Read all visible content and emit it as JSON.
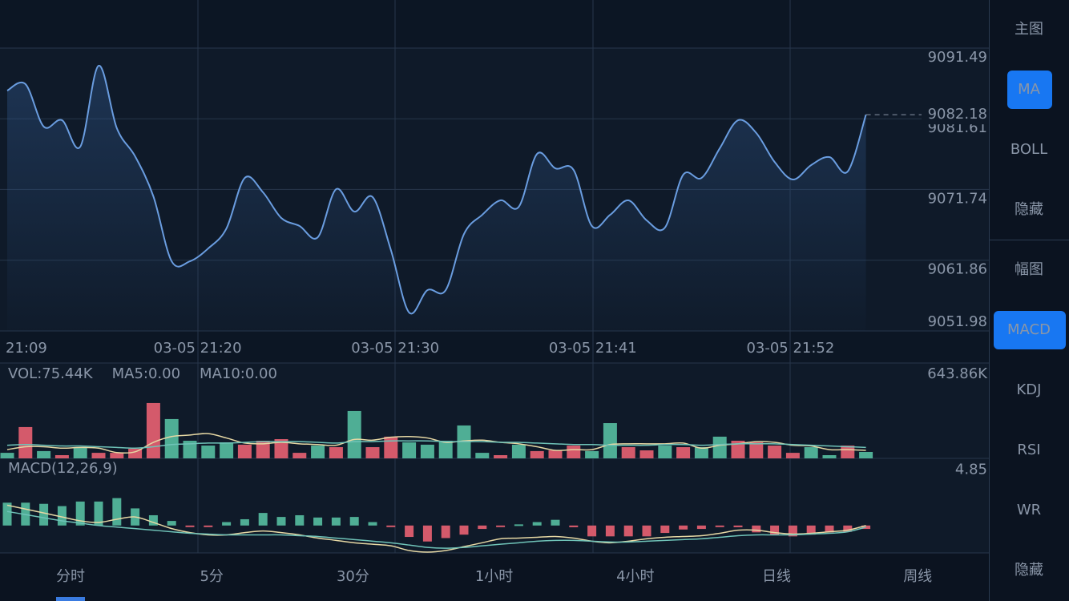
{
  "sidebar": {
    "main_title": "主图",
    "main_items": [
      "MA",
      "BOLL",
      "隐藏"
    ],
    "main_selected": 0,
    "sub_title": "幅图",
    "sub_items": [
      "MACD",
      "KDJ",
      "RSI",
      "WR",
      "隐藏"
    ],
    "sub_selected": 0
  },
  "tabs": {
    "items": [
      "分时",
      "5分",
      "30分",
      "1小时",
      "4小时",
      "日线",
      "周线"
    ],
    "selected": 0
  },
  "chart_data": [
    {
      "type": "line",
      "color": "#6a9de0",
      "x_labels": [
        "21:09",
        "03-05 21:20",
        "03-05 21:30",
        "03-05 21:41",
        "03-05 21:52"
      ],
      "values": [
        9085.55,
        9086.45,
        9080.52,
        9081.41,
        9077.72,
        9089.02,
        9080.29,
        9076.37,
        9070.78,
        9061.71,
        9061.71,
        9063.5,
        9066.3,
        9073.35,
        9071.34,
        9067.76,
        9066.64,
        9065.07,
        9071.78,
        9068.65,
        9070.67,
        9063.28,
        9054.55,
        9057.68,
        9057.68,
        9065.52,
        9068.2,
        9070.22,
        9069.32,
        9076.71,
        9074.69,
        9074.47,
        9066.64,
        9068.2,
        9070.22,
        9067.42,
        9066.41,
        9073.8,
        9073.35,
        9077.49,
        9081.41,
        9079.62,
        9075.59,
        9073.13,
        9075.14,
        9076.26,
        9074.25,
        9082.18
      ],
      "ylim": [
        9051.98,
        9098.2
      ],
      "yticks": [
        9091.49,
        9081.61,
        9071.74,
        9061.86,
        9051.98
      ],
      "grid": true
    },
    {
      "type": "bar",
      "ylim": [
        0,
        643.86
      ],
      "yticks": [
        {
          "value": 643.86,
          "label": "643.86K"
        }
      ],
      "series": [
        {
          "name": "VOL:75.44K",
          "type": "bar",
          "color": "#6b5fd0",
          "values": [
            38,
            215,
            50,
            22,
            77,
            38,
            38,
            66,
            380,
            270,
            121,
            88,
            110,
            94,
            121,
            132,
            38,
            88,
            77,
            325,
            77,
            149,
            110,
            94,
            121,
            226,
            38,
            22,
            94,
            50,
            55,
            88,
            50,
            242,
            77,
            55,
            88,
            77,
            77,
            149,
            121,
            110,
            88,
            38,
            77,
            22,
            88,
            44
          ],
          "colors": [
            "#4fae95",
            "#d45a6b",
            "#4fae95",
            "#d45a6b",
            "#4fae95",
            "#d45a6b",
            "#d45a6b",
            "#d45a6b",
            "#d45a6b",
            "#4fae95",
            "#4fae95",
            "#4fae95",
            "#4fae95",
            "#d45a6b",
            "#d45a6b",
            "#d45a6b",
            "#d45a6b",
            "#4fae95",
            "#d45a6b",
            "#4fae95",
            "#d45a6b",
            "#d45a6b",
            "#4fae95",
            "#4fae95",
            "#4fae95",
            "#4fae95",
            "#4fae95",
            "#d45a6b",
            "#4fae95",
            "#d45a6b",
            "#d45a6b",
            "#d45a6b",
            "#4fae95",
            "#4fae95",
            "#d45a6b",
            "#d45a6b",
            "#4fae95",
            "#d45a6b",
            "#4fae95",
            "#4fae95",
            "#d45a6b",
            "#d45a6b",
            "#d45a6b",
            "#d45a6b",
            "#4fae95",
            "#4fae95",
            "#d45a6b",
            "#4fae95"
          ]
        },
        {
          "name": "MA5:0.00",
          "type": "line",
          "color": "#e6d8a4",
          "values": [
            60,
            80,
            80,
            70,
            75,
            70,
            40,
            45,
            110,
            150,
            160,
            170,
            140,
            105,
            100,
            110,
            100,
            95,
            90,
            130,
            125,
            145,
            150,
            140,
            110,
            120,
            125,
            110,
            100,
            80,
            55,
            60,
            60,
            95,
            100,
            100,
            100,
            105,
            70,
            90,
            100,
            115,
            110,
            90,
            85,
            60,
            60,
            55
          ]
        },
        {
          "name": "MA10:0.00",
          "type": "line",
          "color": "#6fc3b8",
          "values": [
            90,
            95,
            90,
            85,
            85,
            80,
            75,
            70,
            80,
            95,
            100,
            105,
            105,
            110,
            115,
            115,
            115,
            110,
            105,
            115,
            115,
            120,
            120,
            120,
            115,
            115,
            115,
            110,
            110,
            105,
            100,
            95,
            95,
            90,
            90,
            90,
            95,
            95,
            90,
            95,
            100,
            100,
            100,
            95,
            90,
            85,
            80,
            75
          ]
        }
      ]
    },
    {
      "type": "bar",
      "title": "MACD(12,26,9)",
      "ylim": [
        -2.4,
        5.6
      ],
      "yticks": [
        4.85
      ],
      "up_color": "#4fae95",
      "down_color": "#d45a6b",
      "series": [
        {
          "type": "bar",
          "values": [
            2.0,
            2.0,
            1.9,
            1.7,
            2.1,
            2.1,
            2.4,
            1.5,
            0.9,
            0.4,
            -0.07,
            -0.07,
            0.3,
            0.55,
            1.1,
            0.75,
            0.9,
            0.7,
            0.7,
            0.75,
            0.3,
            -0.07,
            -1.0,
            -1.4,
            -1.1,
            -0.8,
            -0.3,
            -0.05,
            0.1,
            0.3,
            0.5,
            -0.15,
            -0.95,
            -0.95,
            -0.95,
            -0.95,
            -0.65,
            -0.35,
            -0.3,
            -0.1,
            -0.15,
            -0.6,
            -0.85,
            -0.95,
            -0.8,
            -0.6,
            -0.55,
            -0.3
          ]
        },
        {
          "type": "line",
          "color": "#e6d8a4",
          "values": [
            1.78,
            1.44,
            1.1,
            0.75,
            0.41,
            0.27,
            0.55,
            0.75,
            0.27,
            -0.27,
            -0.62,
            -0.82,
            -0.82,
            -0.62,
            -0.48,
            -0.62,
            -0.82,
            -1.1,
            -1.3,
            -1.51,
            -1.64,
            -1.78,
            -2.19,
            -2.33,
            -2.19,
            -1.85,
            -1.51,
            -1.16,
            -1.1,
            -1.03,
            -0.96,
            -1.1,
            -1.37,
            -1.51,
            -1.37,
            -1.16,
            -1.03,
            -0.96,
            -0.89,
            -0.68,
            -0.41,
            -0.41,
            -0.62,
            -0.75,
            -0.68,
            -0.55,
            -0.41,
            0.0
          ]
        },
        {
          "type": "line",
          "color": "#6fc3b8",
          "values": [
            1.23,
            0.96,
            0.68,
            0.41,
            0.21,
            0,
            -0.14,
            -0.27,
            -0.41,
            -0.55,
            -0.68,
            -0.75,
            -0.82,
            -0.82,
            -0.82,
            -0.82,
            -0.89,
            -0.96,
            -1.1,
            -1.23,
            -1.37,
            -1.51,
            -1.71,
            -1.92,
            -1.99,
            -1.92,
            -1.78,
            -1.64,
            -1.51,
            -1.37,
            -1.3,
            -1.3,
            -1.37,
            -1.44,
            -1.44,
            -1.37,
            -1.3,
            -1.23,
            -1.16,
            -1.03,
            -0.89,
            -0.82,
            -0.82,
            -0.82,
            -0.75,
            -0.68,
            -0.55,
            -0.14
          ]
        }
      ]
    }
  ]
}
